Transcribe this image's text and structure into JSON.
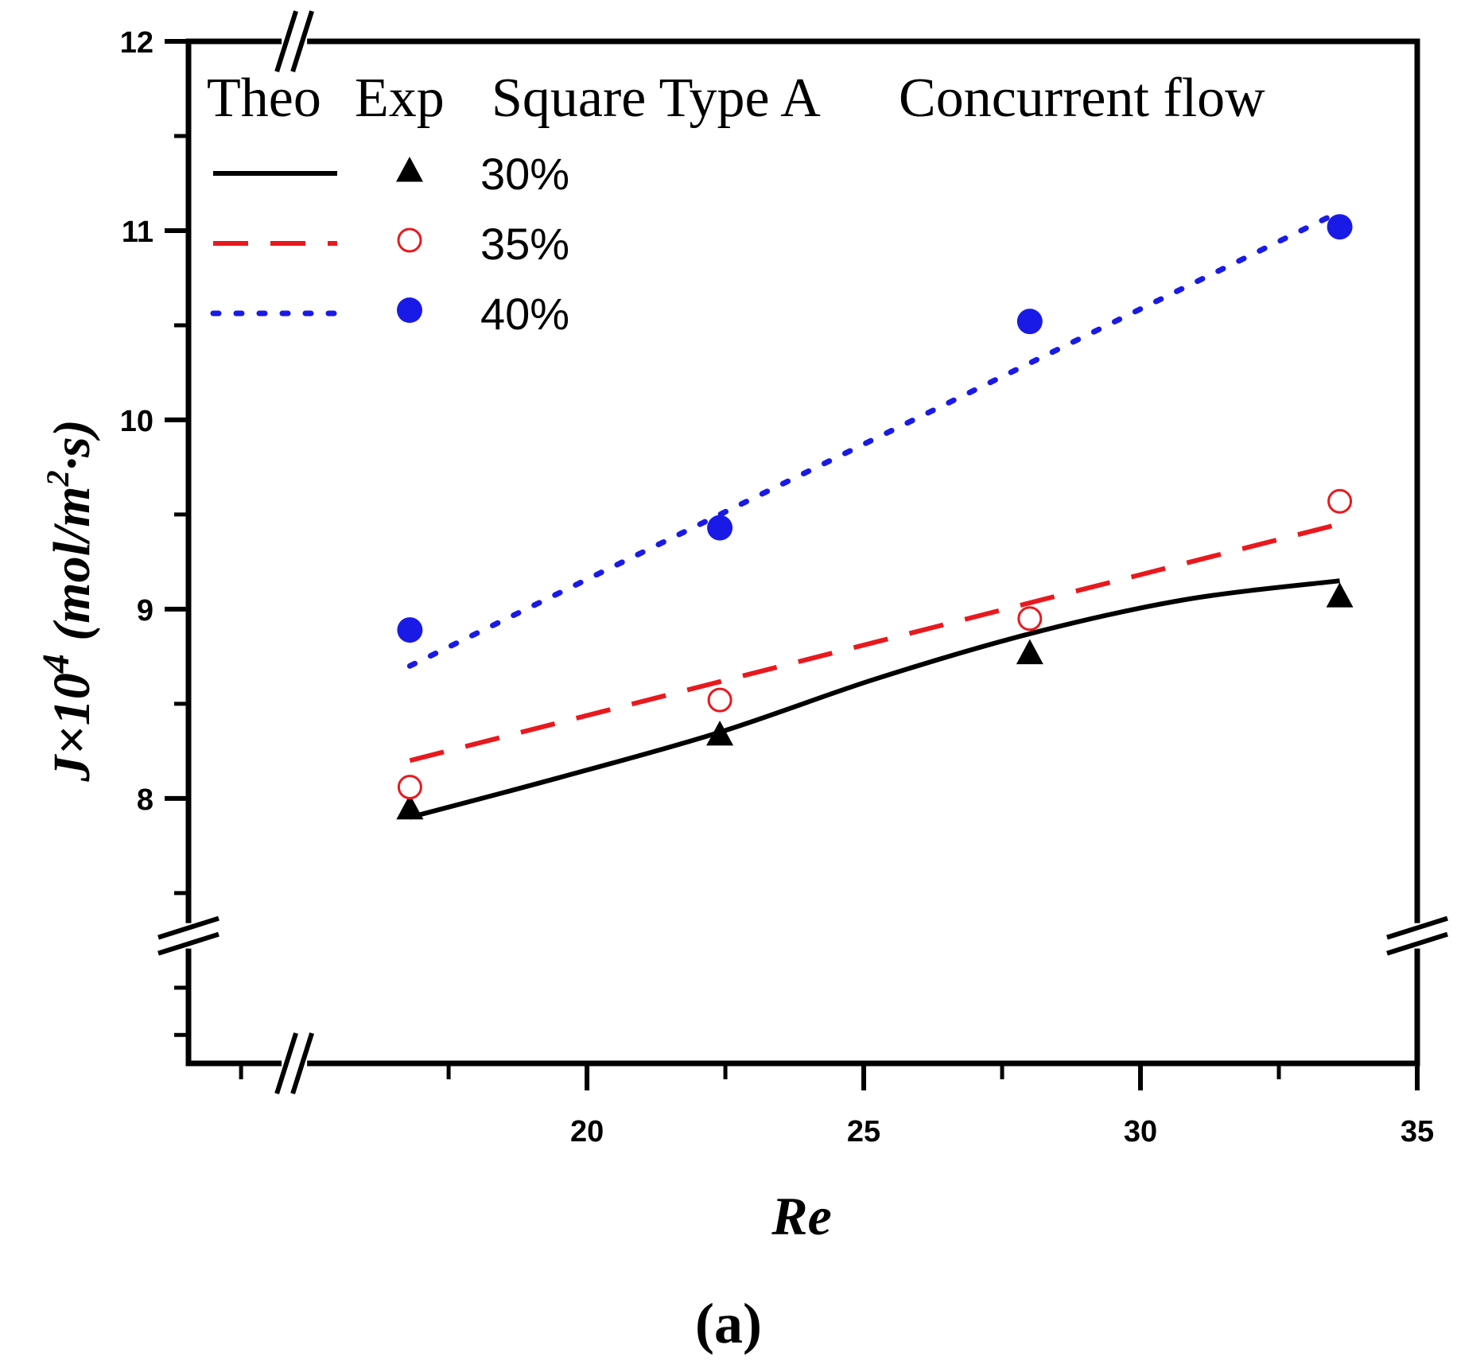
{
  "chart_data": {
    "type": "line",
    "title": "Square Type A",
    "flow_label": "Concurrent flow",
    "legend_headers": {
      "theory": "Theo",
      "experiment": "Exp"
    },
    "xlabel": "Re",
    "ylabel": {
      "main": "J×10",
      "exp": "4",
      "unit_open": " (mol/m",
      "unit_exp": "2",
      "unit_close": "·s)"
    },
    "panel_label": "(a)",
    "xlim": [
      12.8,
      35
    ],
    "ylim": [
      6.6,
      12
    ],
    "x_break_below": 15,
    "y_break_below": 7.4,
    "x_ticks": [
      20,
      25,
      30,
      35
    ],
    "x_tick_labels": [
      "20",
      "25",
      "30",
      "35"
    ],
    "x_minor_ticks": [
      13.75,
      17.5,
      22.5,
      27.5,
      32.5
    ],
    "y_ticks": [
      8,
      9,
      10,
      11,
      12
    ],
    "y_tick_labels": [
      "8",
      "9",
      "10",
      "11",
      "12"
    ],
    "y_minor_ticks": [
      7.5,
      8.5,
      9.5,
      10.5,
      11.5,
      6.75,
      7.0
    ],
    "series": [
      {
        "name": "30%",
        "color": "#000000",
        "line_style": "solid",
        "marker": "triangle-filled",
        "theory": {
          "x": [
            16.8,
            19.5,
            22.4,
            25.2,
            28.0,
            30.8,
            33.6
          ],
          "y": [
            7.9,
            8.11,
            8.35,
            8.63,
            8.87,
            9.05,
            9.15
          ]
        },
        "experiment": {
          "x": [
            16.8,
            22.4,
            28.0,
            33.6
          ],
          "y": [
            7.95,
            8.34,
            8.77,
            9.07
          ]
        }
      },
      {
        "name": "35%",
        "color": "#e8191e",
        "line_style": "dashed",
        "marker": "circle-open",
        "theory": {
          "x": [
            16.8,
            33.6
          ],
          "y": [
            8.2,
            9.45
          ]
        },
        "experiment": {
          "x": [
            16.8,
            22.4,
            28.0,
            33.6
          ],
          "y": [
            8.06,
            8.52,
            8.95,
            9.57
          ]
        }
      },
      {
        "name": "40%",
        "color": "#1a1ae6",
        "line_style": "dotted",
        "marker": "circle-filled",
        "theory": {
          "x": [
            16.8,
            33.6
          ],
          "y": [
            8.7,
            11.1
          ]
        },
        "experiment": {
          "x": [
            16.8,
            22.4,
            28.0,
            33.6
          ],
          "y": [
            8.89,
            9.43,
            10.52,
            11.02
          ]
        }
      }
    ]
  }
}
